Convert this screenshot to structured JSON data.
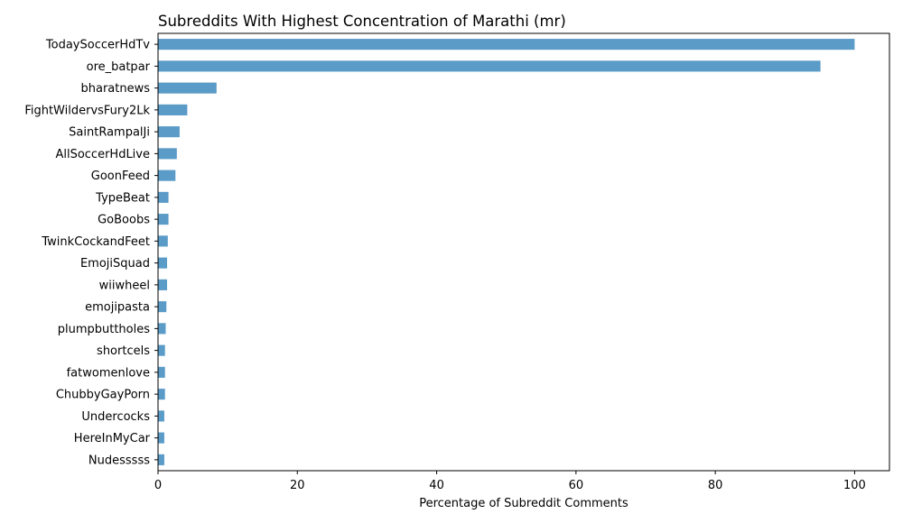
{
  "chart_data": {
    "type": "bar",
    "orientation": "horizontal",
    "title": "Subreddits With Highest Concentration of Marathi (mr)",
    "xlabel": "Percentage of Subreddit Comments",
    "ylabel": "",
    "xlim": [
      0,
      105
    ],
    "xticks": [
      0,
      20,
      40,
      60,
      80,
      100
    ],
    "grid": false,
    "categories": [
      "TodaySoccerHdTv",
      "ore_batpar",
      "bharatnews",
      "FightWildervsFury2Lk",
      "SaintRampalJi",
      "AllSoccerHdLive",
      "GoonFeed",
      "TypeBeat",
      "GoBoobs",
      "TwinkCockandFeet",
      "EmojiSquad",
      "wiiwheel",
      "emojipasta",
      "plumpbuttholes",
      "shortcels",
      "fatwomenlove",
      "ChubbyGayPorn",
      "Undercocks",
      "HereInMyCar",
      "Nudesssss"
    ],
    "values": [
      100.0,
      95.1,
      8.4,
      4.2,
      3.1,
      2.7,
      2.5,
      1.5,
      1.5,
      1.4,
      1.3,
      1.3,
      1.2,
      1.1,
      1.0,
      1.0,
      1.0,
      0.9,
      0.9,
      0.9
    ],
    "color": "#5a9bc8"
  }
}
